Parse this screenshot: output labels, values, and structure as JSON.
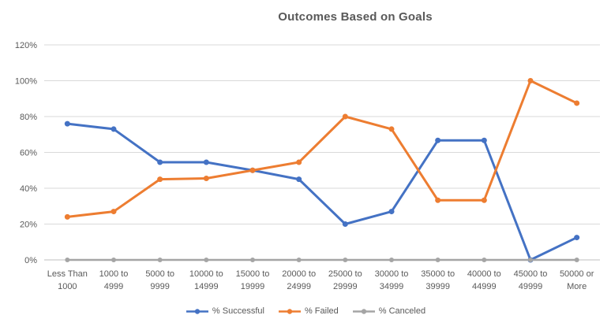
{
  "chart_data": {
    "type": "line",
    "title": "Outcomes Based on Goals",
    "xlabel": "",
    "ylabel": "",
    "categories": [
      "Less Than 1000",
      "1000 to 4999",
      "5000 to 9999",
      "10000 to 14999",
      "15000 to 19999",
      "20000 to 24999",
      "25000 to 29999",
      "30000 to 34999",
      "35000 to 39999",
      "40000 to 44999",
      "45000 to 49999",
      "50000 or More"
    ],
    "series": [
      {
        "name": "% Successful",
        "color": "#4472C4",
        "values": [
          76,
          73,
          54.5,
          54.5,
          50,
          45,
          20,
          27,
          66.7,
          66.7,
          0,
          12.5
        ]
      },
      {
        "name": "% Failed",
        "color": "#ED7D31",
        "values": [
          24,
          27,
          45,
          45.5,
          50,
          54.5,
          80,
          73,
          33.3,
          33.3,
          100,
          87.5
        ]
      },
      {
        "name": "% Canceled",
        "color": "#A5A5A5",
        "values": [
          0,
          0,
          0,
          0,
          0,
          0,
          0,
          0,
          0,
          0,
          0,
          0
        ]
      }
    ],
    "ylim": [
      0,
      120
    ],
    "ytick_step": 20,
    "ytick_labels": [
      "0%",
      "20%",
      "40%",
      "60%",
      "80%",
      "100%",
      "120%"
    ],
    "grid": true,
    "legend_position": "bottom"
  },
  "styles": {
    "title_color": "#595959",
    "axis_text_color": "#595959",
    "gridline_color": "#D9D9D9",
    "axis_line_color": "#BFBFBF",
    "background": "#FFFFFF"
  }
}
